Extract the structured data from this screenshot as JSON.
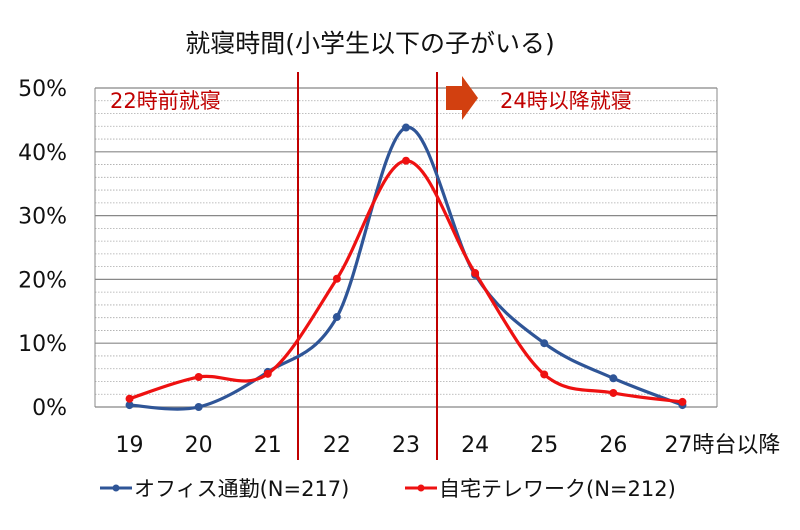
{
  "chart_data": {
    "type": "line",
    "title": "就寝時間(小学生以下の子がいる)",
    "xlabel": "",
    "ylabel": "",
    "categories": [
      "19",
      "20",
      "21",
      "22",
      "23",
      "24",
      "25",
      "26",
      "27時台以降"
    ],
    "ylim": [
      0,
      50
    ],
    "yticks": [
      "0%",
      "10%",
      "20%",
      "30%",
      "40%",
      "50%"
    ],
    "grid": true,
    "legend": "bottom",
    "series": [
      {
        "name": "オフィス通勤(N=217)",
        "color": "#2f5597",
        "values": [
          0.3,
          0.0,
          5.5,
          14.1,
          43.8,
          20.7,
          10.0,
          4.5,
          0.3
        ]
      },
      {
        "name": "自宅テレワーク(N=212)",
        "color": "#ee1111",
        "values": [
          1.3,
          4.7,
          5.2,
          20.1,
          38.6,
          21.0,
          5.1,
          2.2,
          0.8
        ]
      }
    ],
    "annotations": {
      "before": "22時前就寝",
      "after": "24時以降就寝",
      "annotation_color": "#c00000",
      "arrow_color": "#d24010"
    }
  }
}
